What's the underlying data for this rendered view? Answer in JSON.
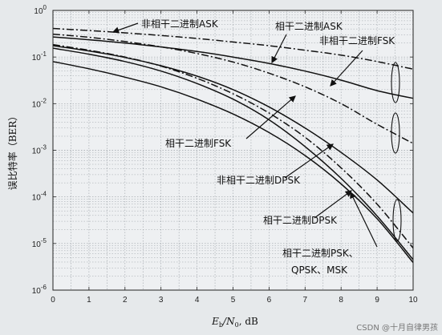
{
  "chart_data": {
    "type": "line",
    "title": "",
    "xlabel": "E_b/N_0, dB",
    "xlabel_parts": {
      "e": "E",
      "e_sub": "b",
      "slash": "/N",
      "n_sub": "0",
      "unit": ", dB"
    },
    "ylabel": "误比特率（BER）",
    "xlim": [
      0,
      10
    ],
    "ylim": [
      1e-06,
      1
    ],
    "y_scale": "log",
    "grid": true,
    "x_ticks": [
      "0",
      "1",
      "2",
      "3",
      "4",
      "5",
      "6",
      "7",
      "8",
      "9",
      "10"
    ],
    "y_ticks": [
      {
        "base": "10",
        "exp": "0"
      },
      {
        "base": "10",
        "exp": "-1"
      },
      {
        "base": "10",
        "exp": "-2"
      },
      {
        "base": "10",
        "exp": "-3"
      },
      {
        "base": "10",
        "exp": "-4"
      },
      {
        "base": "10",
        "exp": "-5"
      },
      {
        "base": "10",
        "exp": "-6"
      }
    ],
    "x": [
      0,
      1,
      2,
      3,
      4,
      5,
      6,
      7,
      8,
      9,
      10
    ],
    "series": [
      {
        "label_ref": "a0",
        "style": "dashdot",
        "values": [
          0.41,
          0.37,
          0.33,
          0.29,
          0.25,
          0.21,
          0.175,
          0.14,
          0.11,
          0.08,
          0.055
        ]
      },
      {
        "label_ref": "a1",
        "style": "solid",
        "values": [
          0.27,
          0.235,
          0.2,
          0.165,
          0.132,
          0.1,
          0.073,
          0.05,
          0.032,
          0.019,
          0.013
        ]
      },
      {
        "label_ref": "a2",
        "style": "dashdot",
        "values": [
          0.31,
          0.265,
          0.215,
          0.165,
          0.119,
          0.078,
          0.045,
          0.023,
          0.01,
          0.0036,
          0.0014
        ]
      },
      {
        "label_ref": "a3",
        "style": "solid",
        "values": [
          0.175,
          0.135,
          0.098,
          0.065,
          0.039,
          0.02,
          0.0085,
          0.003,
          0.0009,
          0.00023,
          4.5e-05
        ]
      },
      {
        "label_ref": "a4",
        "style": "dashdot",
        "values": [
          0.185,
          0.14,
          0.1,
          0.064,
          0.035,
          0.0163,
          0.0063,
          0.0019,
          0.00042,
          7e-05,
          8e-06
        ]
      },
      {
        "label_ref": "a5",
        "style": "solid",
        "values": [
          0.155,
          0.115,
          0.08,
          0.05,
          0.027,
          0.0125,
          0.0045,
          0.0012,
          0.00025,
          3.9e-05,
          4.5e-06
        ]
      },
      {
        "label_ref": "a6",
        "style": "solid",
        "values": [
          0.08,
          0.056,
          0.037,
          0.023,
          0.0125,
          0.006,
          0.0024,
          0.00077,
          0.00019,
          3.4e-05,
          3.9e-06
        ]
      }
    ],
    "annotations": [
      {
        "id": "a0",
        "text": "非相干二进制ASK"
      },
      {
        "id": "a1",
        "text": "相干二进制ASK"
      },
      {
        "id": "a2",
        "text": "非相干二进制FSK"
      },
      {
        "id": "a3",
        "text": "相干二进制FSK"
      },
      {
        "id": "a4",
        "text": "非相干二进制DPSK"
      },
      {
        "id": "a5",
        "text": "相干二进制DPSK"
      },
      {
        "id": "a6",
        "text": "相干二进制PSK、"
      },
      {
        "id": "a6b",
        "text": "QPSK、MSK"
      }
    ]
  },
  "watermark": "CSDN @十月自律男孩"
}
